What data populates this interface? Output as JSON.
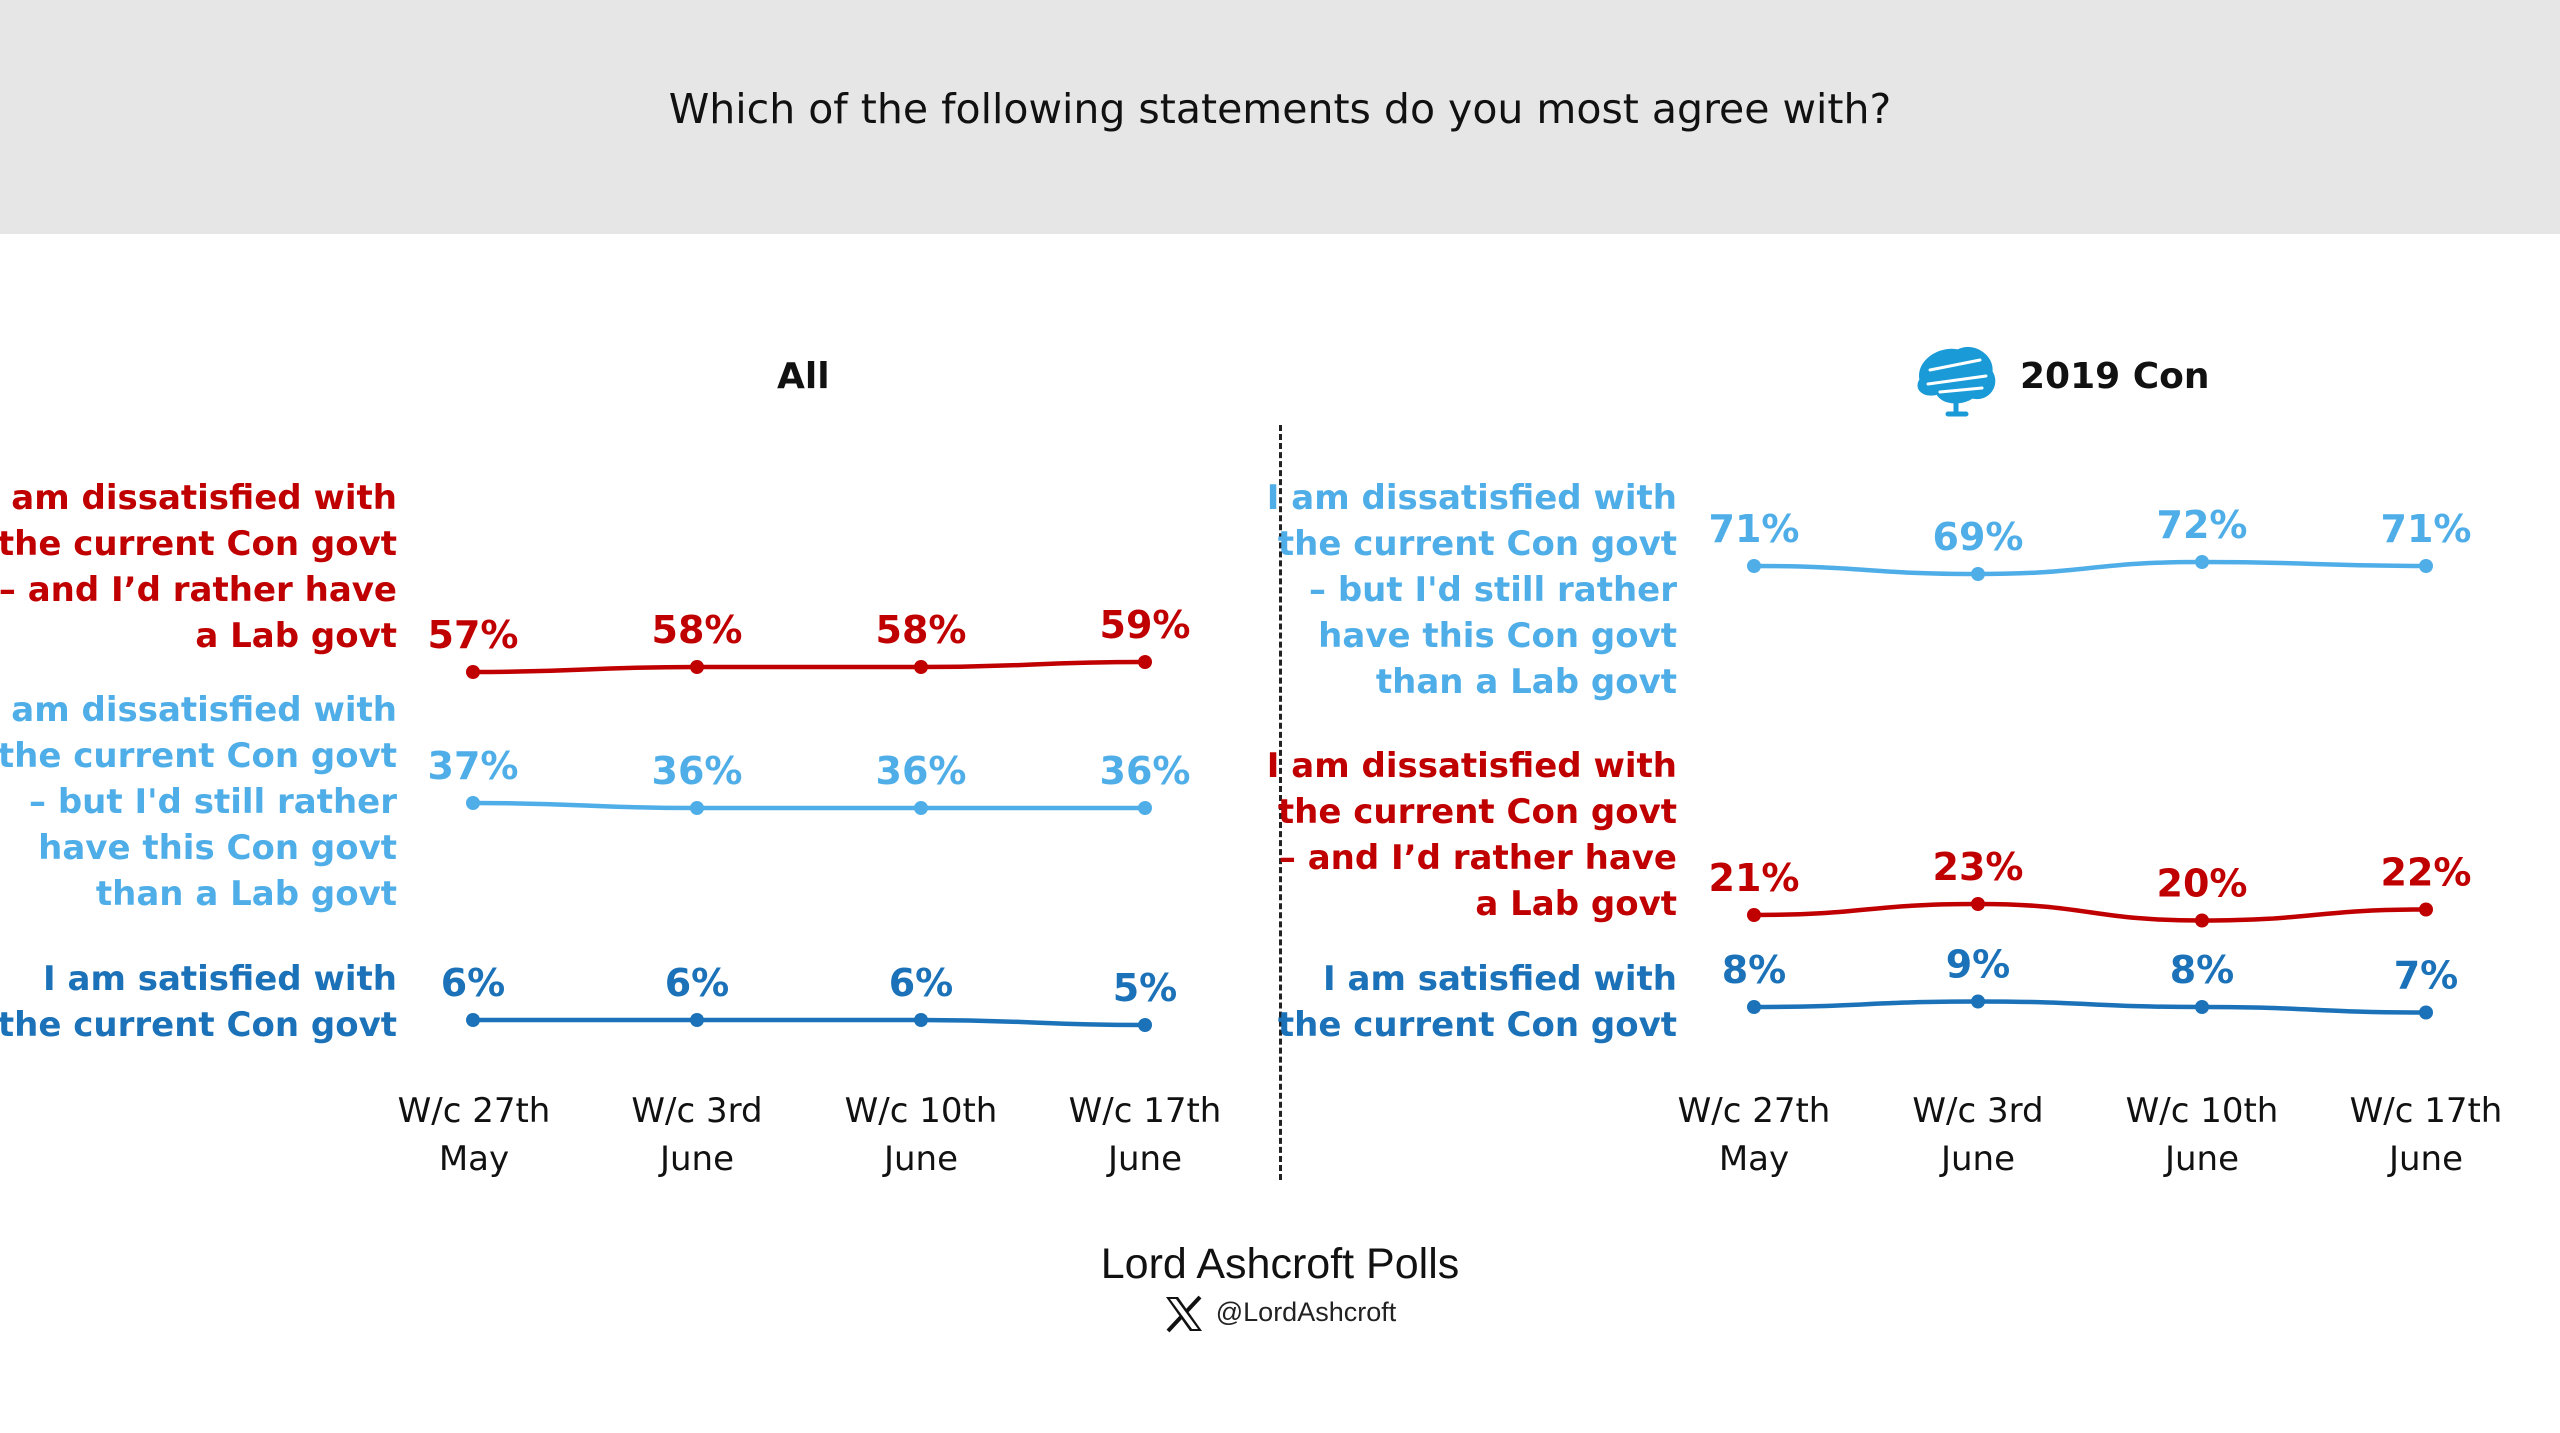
{
  "title": "Which of the following statements do you most agree with?",
  "footer": {
    "source": "Lord Ashcroft Polls",
    "handle": "@LordAshcroft",
    "handle_icon": "x-logo-icon"
  },
  "colors": {
    "red": "#c00000",
    "light_blue": "#4faee8",
    "dark_blue": "#1b72b8"
  },
  "chart_data": [
    {
      "type": "line",
      "title": "All",
      "categories": [
        "W/c 27th\nMay",
        "W/c 3rd\nJune",
        "W/c 10th\nJune",
        "W/c 17th\nJune"
      ],
      "series": [
        {
          "name": "I am dissatisfied with the current Con govt – and I’d rather have a Lab govt",
          "color": "#c00000",
          "values": [
            57,
            58,
            58,
            59
          ],
          "labels": [
            "57%",
            "58%",
            "58%",
            "59%"
          ]
        },
        {
          "name": "I am dissatisfied with the current Con govt – but I'd still rather have this Con govt than a Lab govt",
          "color": "#4faee8",
          "values": [
            37,
            36,
            36,
            36
          ],
          "labels": [
            "37%",
            "36%",
            "36%",
            "36%"
          ]
        },
        {
          "name": "I am satisfied with the current Con govt",
          "color": "#1b72b8",
          "values": [
            6,
            6,
            6,
            5
          ],
          "labels": [
            "6%",
            "6%",
            "6%",
            "5%"
          ]
        }
      ]
    },
    {
      "type": "line",
      "title": "2019 Con",
      "title_icon": "conservative-tree-icon",
      "categories": [
        "W/c 27th\nMay",
        "W/c 3rd\nJune",
        "W/c 10th\nJune",
        "W/c 17th\nJune"
      ],
      "series": [
        {
          "name": "I am dissatisfied with the current Con govt – but I'd still rather have this Con govt than a Lab govt",
          "color": "#4faee8",
          "values": [
            71,
            69,
            72,
            71
          ],
          "labels": [
            "71%",
            "69%",
            "72%",
            "71%"
          ]
        },
        {
          "name": "I am dissatisfied with the current Con govt – and I’d rather have a Lab govt",
          "color": "#c00000",
          "values": [
            21,
            23,
            20,
            22
          ],
          "labels": [
            "21%",
            "23%",
            "20%",
            "22%"
          ]
        },
        {
          "name": "I am satisfied with the current Con govt",
          "color": "#1b72b8",
          "values": [
            8,
            9,
            8,
            7
          ],
          "labels": [
            "8%",
            "9%",
            "8%",
            "7%"
          ]
        }
      ]
    }
  ]
}
